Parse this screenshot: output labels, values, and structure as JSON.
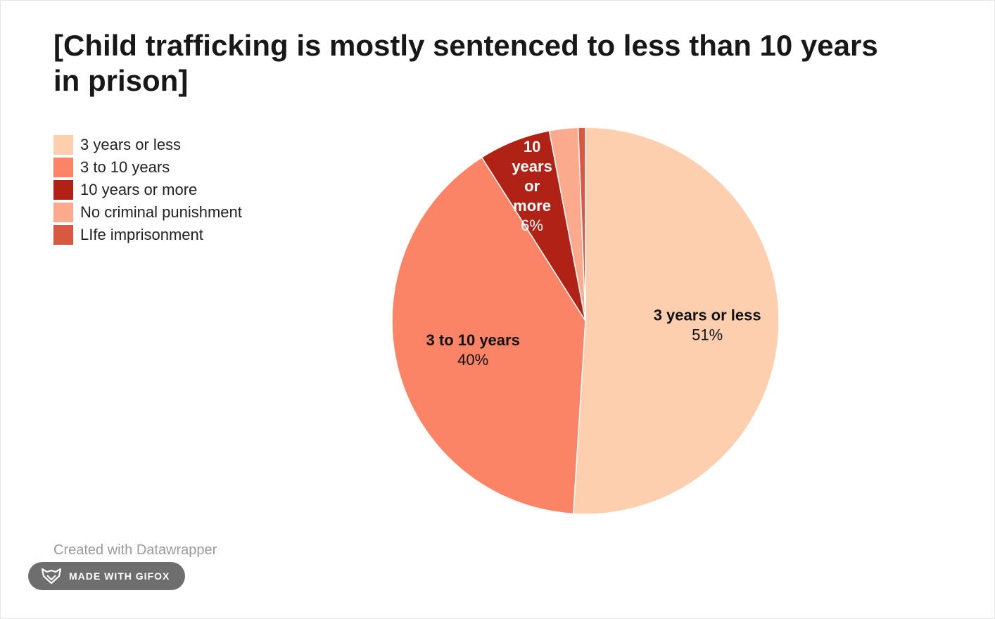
{
  "chart_data": {
    "type": "pie",
    "title": "[Child trafficking is mostly sentenced to less than 10 years in prison]",
    "categories": [
      "3 years or less",
      "3 to 10 years",
      "10 years or more",
      "No criminal punishment",
      "LIfe imprisonment"
    ],
    "values": [
      51,
      40,
      6,
      2.4,
      0.6
    ],
    "colors": [
      "#fdcfae",
      "#fc8466",
      "#b02216",
      "#fcaa8d",
      "#d95842"
    ],
    "legend_position": "top-left",
    "slice_labels": [
      {
        "name": "3 years or less",
        "value_label": "51%",
        "label_color": "#111111"
      },
      {
        "name": "3 to 10 years",
        "value_label": "40%",
        "label_color": "#111111"
      },
      {
        "name_lines": [
          "10",
          "years",
          "or",
          "more"
        ],
        "value_label": "6%",
        "label_color": "#ffffff"
      }
    ]
  },
  "footer": {
    "credit": "Created with Datawrapper",
    "badge": "MADE WITH GIFOX"
  }
}
